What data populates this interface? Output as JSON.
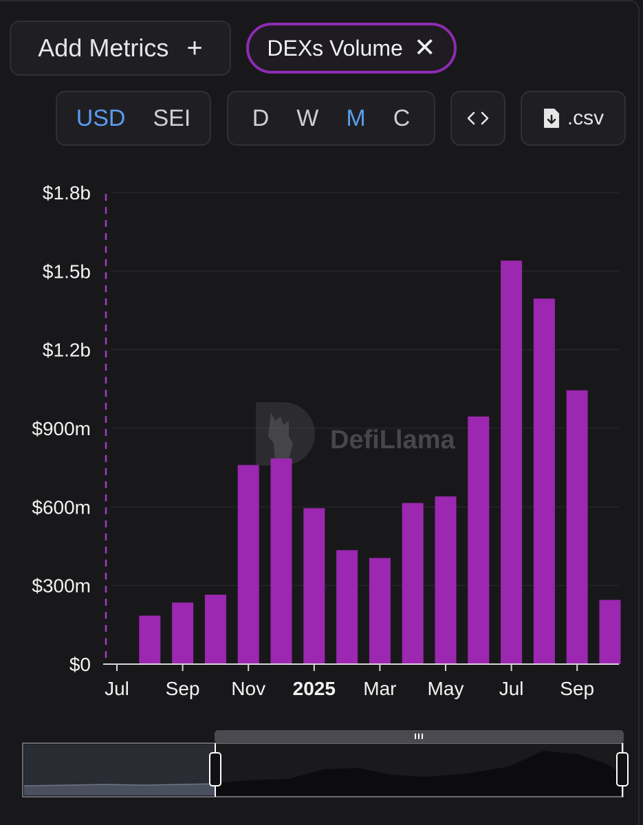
{
  "toolbar": {
    "add_metrics_label": "Add Metrics",
    "add_icon": "plus-icon",
    "metric_chip_label": "DEXs Volume",
    "remove_icon": "close-icon",
    "currency_options": [
      "USD",
      "SEI"
    ],
    "currency_selected": "USD",
    "period_options": [
      "D",
      "W",
      "M",
      "C"
    ],
    "period_selected": "M",
    "embed_icon": "code-icon",
    "csv_icon": "file-download-icon",
    "csv_label": ".csv"
  },
  "watermark": "DefiLlama",
  "colors": {
    "bar": "#9c27b0",
    "accent_active": "#5b9cf0",
    "chip_border": "#8e2bb0",
    "background": "#18181b"
  },
  "chart_data": {
    "type": "bar",
    "title": "",
    "xlabel": "",
    "ylabel": "",
    "ylim": [
      0,
      1800000000
    ],
    "y_ticks": [
      "$0",
      "$300m",
      "$600m",
      "$900m",
      "$1.2b",
      "$1.5b",
      "$1.8b"
    ],
    "x_ticks": [
      "Jul",
      "Sep",
      "Nov",
      "2025",
      "Mar",
      "May",
      "Jul",
      "Sep"
    ],
    "categories": [
      "2024-07",
      "2024-08",
      "2024-09",
      "2024-10",
      "2024-11",
      "2024-12",
      "2025-01",
      "2025-02",
      "2025-03",
      "2025-04",
      "2025-05",
      "2025-06",
      "2025-07",
      "2025-08",
      "2025-09",
      "2025-10"
    ],
    "values": [
      0,
      185000000,
      235000000,
      265000000,
      760000000,
      785000000,
      595000000,
      435000000,
      405000000,
      615000000,
      640000000,
      945000000,
      1540000000,
      1395000000,
      1045000000,
      245000000
    ],
    "grid": true,
    "legend": "none"
  }
}
